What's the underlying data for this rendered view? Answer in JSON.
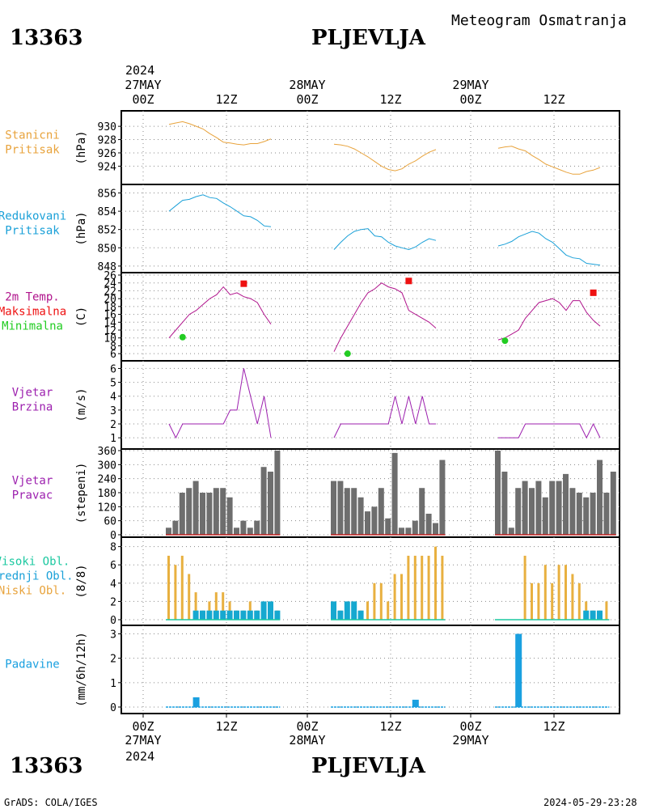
{
  "header": {
    "station_id": "13363",
    "station_name": "PLJEVLJA",
    "meteogram_title": "Meteogram Osmatranja",
    "footer_left": "GrADS: COLA/IGES",
    "footer_right": "2024-05-29-23:28"
  },
  "time_axis": {
    "top_year": "2024",
    "bottom_year": "2024",
    "ticks": [
      {
        "label": "00Z",
        "date": "27MAY"
      },
      {
        "label": "12Z",
        "date": ""
      },
      {
        "label": "00Z",
        "date": "28MAY"
      },
      {
        "label": "12Z",
        "date": ""
      },
      {
        "label": "00Z",
        "date": "29MAY"
      },
      {
        "label": "12Z",
        "date": ""
      }
    ]
  },
  "colors": {
    "pressure": "#e8a33c",
    "reduced": "#1aa0d8",
    "temp_line": "#b0148c",
    "tmax": "#ee1111",
    "tmin": "#22cc22",
    "wind": "#9c1fae",
    "bars": "#6e6e6e",
    "low_cloud": "#e8b040",
    "mid_cloud": "#16a8d0",
    "high_cloud": "#1bc8a0",
    "precip": "#1aa0e0"
  },
  "chart_data": [
    {
      "type": "line",
      "panel_label": [
        "Stanicni",
        "Pritisak"
      ],
      "ylabel": "(hPa)",
      "yticks": [
        "930",
        "928",
        "926",
        "924"
      ],
      "ylim": [
        922.1,
        931.6
      ],
      "series": [
        {
          "segment": 1,
          "x_hours": [
            3,
            6,
            9,
            12,
            15,
            18,
            21,
            24,
            27,
            30,
            33,
            36,
            39,
            42,
            45,
            48
          ],
          "values": [
            930.3,
            930.5,
            930.7,
            930.4,
            930.0,
            929.6,
            928.9,
            928.3,
            927.6,
            927.5,
            927.3,
            927.2,
            927.4,
            927.4,
            927.7,
            928.1
          ]
        },
        {
          "segment": 2,
          "x_hours": [
            3,
            6,
            9,
            12,
            15,
            18,
            21,
            24,
            27,
            30,
            33,
            36,
            39,
            42,
            45,
            48
          ],
          "values": [
            927.3,
            927.2,
            927.0,
            926.6,
            926.0,
            925.4,
            924.7,
            924.0,
            923.5,
            923.3,
            923.6,
            924.3,
            924.8,
            925.5,
            926.1,
            926.5
          ]
        },
        {
          "segment": 3,
          "x_hours": [
            3,
            6,
            9,
            12,
            15,
            18,
            21,
            24,
            27,
            30,
            33,
            36,
            39,
            42,
            45,
            48
          ],
          "values": [
            926.7,
            926.9,
            927.0,
            926.6,
            926.3,
            925.6,
            925.0,
            924.3,
            923.9,
            923.5,
            923.1,
            922.8,
            922.8,
            923.2,
            923.4,
            923.8
          ]
        }
      ]
    },
    {
      "type": "line",
      "panel_label": [
        "Redukovani",
        "Pritisak"
      ],
      "ylabel": "(hPa)",
      "yticks": [
        "856",
        "854",
        "852",
        "850",
        "848"
      ],
      "ylim": [
        847.9,
        856.4
      ],
      "series": [
        {
          "segment": 1,
          "x_hours": [
            3,
            6,
            9,
            12,
            15,
            18,
            21,
            24,
            27,
            30,
            33,
            36,
            39,
            42,
            45,
            48
          ],
          "values": [
            854.0,
            854.6,
            855.2,
            855.3,
            855.6,
            855.8,
            855.5,
            855.4,
            854.9,
            854.5,
            854.0,
            853.5,
            853.4,
            853.0,
            852.4,
            852.3
          ]
        },
        {
          "segment": 2,
          "x_hours": [
            3,
            6,
            9,
            12,
            15,
            18,
            21,
            24,
            27,
            30,
            33,
            36,
            39,
            42,
            45,
            48
          ],
          "values": [
            849.8,
            850.6,
            851.3,
            851.8,
            852.0,
            852.1,
            851.3,
            851.2,
            850.6,
            850.2,
            850.0,
            849.8,
            850.1,
            850.6,
            851.0,
            850.8
          ]
        },
        {
          "segment": 3,
          "x_hours": [
            3,
            6,
            9,
            12,
            15,
            18,
            21,
            24,
            27,
            30,
            33,
            36,
            39,
            42,
            45,
            48
          ],
          "values": [
            850.2,
            850.4,
            850.7,
            851.2,
            851.5,
            851.8,
            851.6,
            851.0,
            850.6,
            849.9,
            849.2,
            848.9,
            848.8,
            848.3,
            848.2,
            848.1
          ]
        }
      ]
    },
    {
      "type": "line",
      "panel_label": [
        "2m Temp.",
        "Maksimalna",
        "Minimalna"
      ],
      "ylabel": "(C)",
      "yticks": [
        "26",
        "24",
        "22",
        "20",
        "18",
        "16",
        "14",
        "12",
        "10",
        "8",
        "6"
      ],
      "ylim": [
        5,
        26
      ],
      "series": [
        {
          "segment": 1,
          "x_hours": [
            3,
            6,
            9,
            12,
            15,
            18,
            21,
            24,
            27,
            30,
            33,
            36,
            39,
            42,
            45,
            48
          ],
          "values": [
            10,
            12,
            14,
            16,
            17,
            18.5,
            20,
            21,
            23,
            21,
            21.5,
            20.5,
            20,
            19,
            16,
            13.5
          ]
        },
        {
          "segment": 2,
          "x_hours": [
            3,
            6,
            9,
            12,
            15,
            18,
            21,
            24,
            27,
            30,
            33,
            36,
            39,
            42,
            45,
            48
          ],
          "values": [
            6.5,
            10,
            13,
            16,
            19,
            21.5,
            22.5,
            24,
            23,
            22.5,
            21.5,
            17,
            16,
            15,
            14,
            12.5
          ]
        },
        {
          "segment": 3,
          "x_hours": [
            3,
            6,
            9,
            12,
            15,
            18,
            21,
            24,
            27,
            30,
            33,
            36,
            39,
            42,
            45,
            48
          ],
          "values": [
            9.5,
            10,
            11,
            12,
            15,
            17,
            19,
            19.5,
            20,
            19,
            17,
            19.5,
            19.5,
            16.5,
            14.5,
            13
          ]
        }
      ],
      "maxima": [
        {
          "x_hour": 36,
          "day": 1,
          "value": 23.8
        },
        {
          "x_hour": 36,
          "day": 2,
          "value": 24.5
        },
        {
          "x_hour": 45,
          "day": 3,
          "value": 21.5
        }
      ],
      "minima": [
        {
          "x_hour": 9,
          "day": 1,
          "value": 10.2
        },
        {
          "x_hour": 9,
          "day": 2,
          "value": 6.0
        },
        {
          "x_hour": 6,
          "day": 3,
          "value": 9.3
        }
      ]
    },
    {
      "type": "line",
      "panel_label": [
        "Vjetar",
        "Brzina"
      ],
      "ylabel": "(m/s)",
      "yticks": [
        "6",
        "5",
        "4",
        "3",
        "2",
        "1"
      ],
      "ylim": [
        0.6,
        6.2
      ],
      "series": [
        {
          "segment": 1,
          "x_hours": [
            3,
            6,
            9,
            12,
            15,
            18,
            21,
            24,
            27,
            30,
            33,
            36,
            39,
            42,
            45,
            48
          ],
          "values": [
            2,
            1,
            2,
            2,
            2,
            2,
            2,
            2,
            2,
            3,
            3,
            6,
            4,
            2,
            4,
            1
          ]
        },
        {
          "segment": 2,
          "x_hours": [
            3,
            6,
            9,
            12,
            15,
            18,
            21,
            24,
            27,
            30,
            33,
            36,
            39,
            42,
            45,
            48
          ],
          "values": [
            1,
            2,
            2,
            2,
            2,
            2,
            2,
            2,
            2,
            4,
            2,
            4,
            2,
            4,
            2,
            2
          ]
        },
        {
          "segment": 3,
          "x_hours": [
            3,
            6,
            9,
            12,
            15,
            18,
            21,
            24,
            27,
            30,
            33,
            36,
            39,
            42,
            45,
            48
          ],
          "values": [
            1,
            1,
            1,
            1,
            2,
            2,
            2,
            2,
            2,
            2,
            2,
            2,
            2,
            1,
            2,
            1
          ]
        }
      ]
    },
    {
      "type": "bar",
      "panel_label": [
        "Vjetar",
        "Pravac"
      ],
      "ylabel": "(stepeni)",
      "yticks": [
        "360",
        "300",
        "240",
        "180",
        "120",
        "60",
        "0"
      ],
      "ylim": [
        0,
        360
      ],
      "series": [
        {
          "segment": 1,
          "values": [
            30,
            60,
            180,
            200,
            230,
            180,
            180,
            200,
            200,
            160,
            30,
            60,
            30,
            60,
            290,
            270,
            360
          ]
        },
        {
          "segment": 2,
          "values": [
            230,
            230,
            200,
            200,
            160,
            100,
            120,
            200,
            70,
            350,
            30,
            30,
            60,
            200,
            90,
            50,
            320
          ]
        },
        {
          "segment": 3,
          "values": [
            360,
            270,
            30,
            200,
            230,
            200,
            230,
            160,
            230,
            230,
            260,
            200,
            180,
            160,
            180,
            320,
            180,
            270
          ]
        }
      ]
    },
    {
      "type": "bar",
      "panel_label": [
        "Visoki Obl.",
        "Srednji Obl.",
        "Niski Obl."
      ],
      "ylabel": "(8/8)",
      "yticks": [
        "8",
        "6",
        "4",
        "2",
        "0"
      ],
      "ylim": [
        0,
        8.5
      ],
      "series": [
        {
          "name": "Niski Obl.",
          "segment": 1,
          "values": [
            7,
            6,
            7,
            5,
            3,
            1,
            2,
            3,
            3,
            2,
            1,
            1,
            2,
            1,
            1,
            1,
            1
          ]
        },
        {
          "name": "Srednji Obl.",
          "segment": 1,
          "values": [
            0,
            0,
            0,
            0,
            1,
            1,
            1,
            1,
            1,
            1,
            1,
            1,
            1,
            1,
            2,
            2,
            1
          ]
        },
        {
          "name": "Niski Obl.",
          "segment": 2,
          "values": [
            1,
            1,
            1,
            1,
            1,
            2,
            4,
            4,
            2,
            5,
            5,
            7,
            7,
            7,
            7,
            8,
            7
          ]
        },
        {
          "name": "Srednji Obl.",
          "segment": 2,
          "values": [
            2,
            1,
            2,
            2,
            1,
            0,
            0,
            0,
            0,
            0,
            0,
            0,
            0,
            0,
            0,
            0,
            0
          ]
        },
        {
          "name": "Niski Obl.",
          "segment": 3,
          "values": [
            0,
            0,
            0,
            0,
            7,
            4,
            4,
            6,
            4,
            6,
            6,
            5,
            4,
            2,
            1,
            1,
            2
          ]
        },
        {
          "name": "Srednji Obl.",
          "segment": 3,
          "values": [
            0,
            0,
            0,
            0,
            0,
            0,
            0,
            0,
            0,
            0,
            0,
            0,
            0,
            1,
            1,
            1,
            0
          ]
        }
      ]
    },
    {
      "type": "bar",
      "panel_label": [
        "Padavine"
      ],
      "ylabel": "(mm/6h/12h)",
      "yticks": [
        "3",
        "2",
        "1",
        "0"
      ],
      "ylim": [
        -0.2,
        3.15
      ],
      "series": [
        {
          "segment": 1,
          "x_hour": 15,
          "value": 0.4
        },
        {
          "segment": 2,
          "x_hour": 39,
          "value": 0.3
        },
        {
          "segment": 3,
          "x_hour": 12,
          "value": 3.0
        }
      ]
    }
  ]
}
